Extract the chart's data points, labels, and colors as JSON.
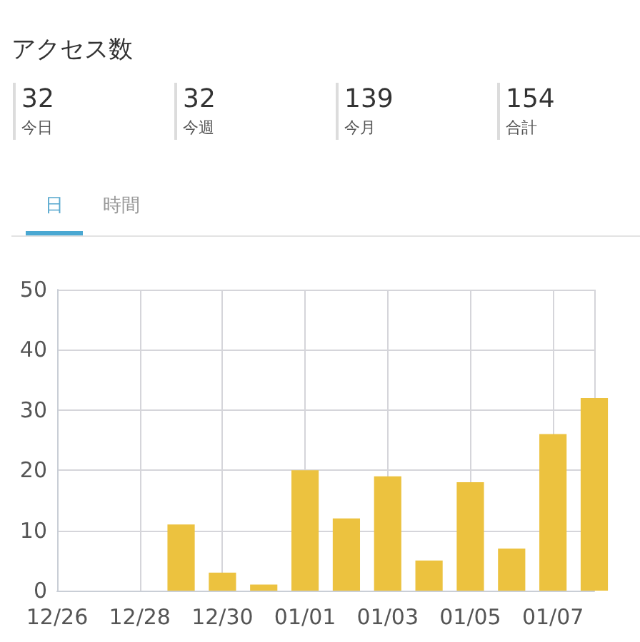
{
  "chart_data": [
    {
      "type": "other",
      "title": "アクセス数",
      "categories": [
        "今日",
        "今週",
        "今月",
        "合計"
      ],
      "values": [
        32,
        32,
        139,
        154
      ],
      "data_labels": true
    },
    {
      "type": "bar",
      "annotations": [
        "日",
        "時間"
      ],
      "categories": [
        "12/26",
        null,
        "12/28",
        null,
        "12/30",
        null,
        "01/01",
        null,
        "01/03",
        null,
        "01/05",
        null,
        "01/07",
        null
      ],
      "values": [
        0,
        0,
        0,
        11,
        3,
        1,
        20,
        12,
        19,
        5,
        18,
        7,
        26,
        32
      ],
      "color": "#ecc23f",
      "ylim": [
        0,
        50
      ],
      "yticks": [
        0,
        10,
        20,
        30,
        40,
        50
      ],
      "grid": true
    }
  ]
}
